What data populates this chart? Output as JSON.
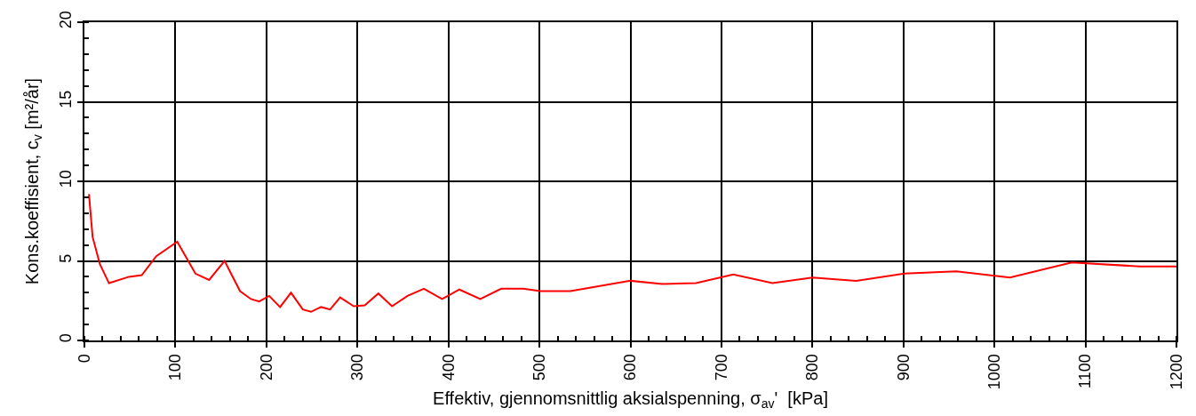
{
  "chart_data": {
    "type": "line",
    "xlabel": "Effektiv, gjennomsnittlig aksialspenning, σ$_{av}$'  [kPa]",
    "ylabel": "Kons.koeffisient, c$_{v}$ [m²/år]",
    "x": [
      5,
      9,
      17,
      27,
      49,
      63,
      79,
      102,
      122,
      137,
      154,
      171,
      183,
      192,
      203,
      215,
      227,
      240,
      249,
      260,
      270,
      281,
      296,
      308,
      323,
      338,
      355,
      373,
      393,
      412,
      435,
      458,
      482,
      501,
      534,
      600,
      635,
      672,
      713,
      756,
      800,
      848,
      901,
      958,
      1017,
      1085,
      1160,
      1200
    ],
    "series": [
      {
        "color": "#ff0000",
        "values": [
          9.2,
          6.5,
          4.8,
          3.6,
          4.0,
          4.1,
          5.3,
          6.2,
          4.2,
          3.8,
          5.0,
          3.1,
          2.6,
          2.45,
          2.8,
          2.1,
          3.0,
          1.95,
          1.8,
          2.1,
          1.95,
          2.7,
          2.15,
          2.2,
          2.95,
          2.15,
          2.8,
          3.25,
          2.6,
          3.2,
          2.6,
          3.25,
          3.25,
          3.1,
          3.1,
          3.75,
          3.55,
          3.6,
          4.15,
          3.6,
          3.95,
          3.75,
          4.2,
          4.35,
          3.95,
          4.9,
          4.65,
          4.65
        ]
      }
    ],
    "xlim": [
      0,
      1200
    ],
    "xticks": [
      0,
      100,
      200,
      300,
      400,
      500,
      600,
      700,
      800,
      900,
      1000,
      1100,
      1200
    ],
    "ylim": [
      0,
      20
    ],
    "yticks": [
      0,
      5,
      10,
      15,
      20
    ],
    "grid": true,
    "marker": "none",
    "line_style": "solid"
  }
}
